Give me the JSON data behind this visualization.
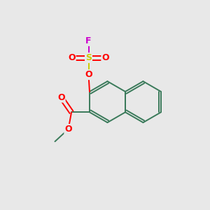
{
  "background_color": "#e8e8e8",
  "bond_color": "#3a7a5a",
  "atom_colors": {
    "O": "#ff0000",
    "S": "#cccc00",
    "F": "#cc00cc",
    "C": "#3a7a5a"
  },
  "figsize": [
    3.0,
    3.0
  ],
  "dpi": 100,
  "xlim": [
    0,
    10
  ],
  "ylim": [
    0,
    10
  ]
}
